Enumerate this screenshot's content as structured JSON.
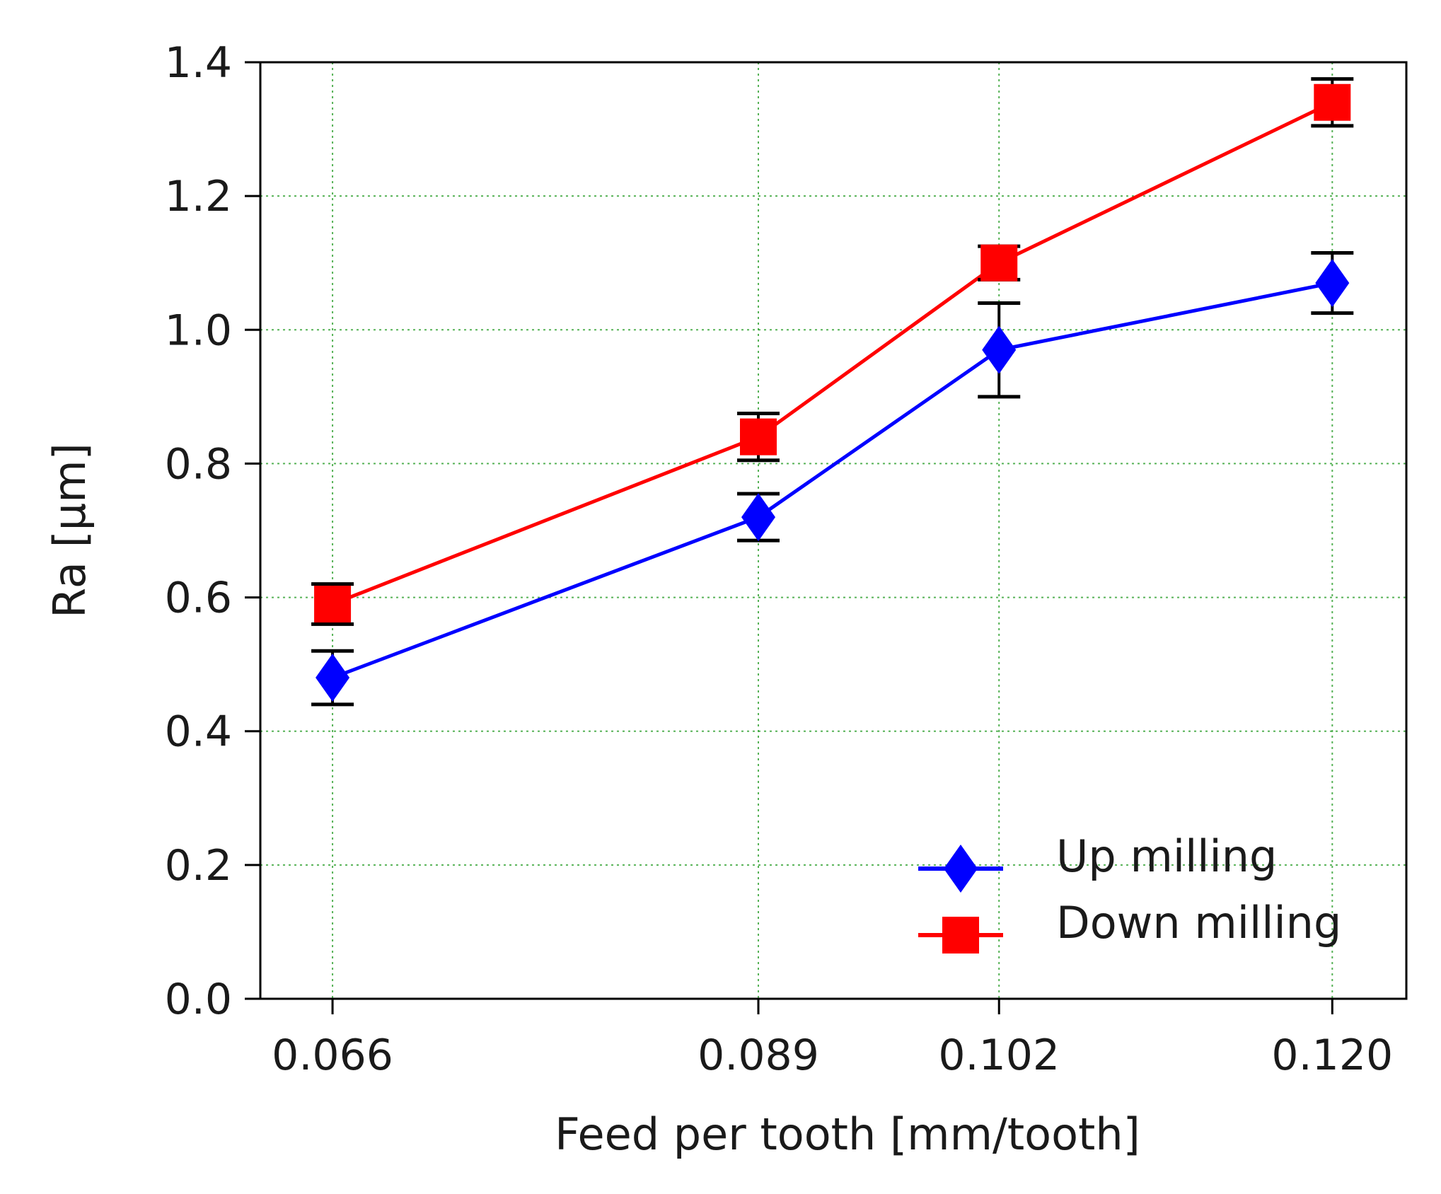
{
  "chart_data": {
    "type": "line",
    "title": "",
    "xlabel": "Feed per tooth [mm/tooth]",
    "ylabel": "Ra [µm]",
    "x": [
      0.066,
      0.089,
      0.102,
      0.12
    ],
    "x_tick_labels": [
      "0.066",
      "0.089",
      "0.102",
      "0.120"
    ],
    "xlim": [
      0.0621,
      0.124
    ],
    "ylim": [
      0.0,
      1.4
    ],
    "y_ticks": [
      0.0,
      0.2,
      0.4,
      0.6,
      0.8,
      1.0,
      1.2,
      1.4
    ],
    "y_tick_labels": [
      "0.0",
      "0.2",
      "0.4",
      "0.6",
      "0.8",
      "1.0",
      "1.2",
      "1.4"
    ],
    "grid": true,
    "legend_position": "bottom-right",
    "series": [
      {
        "name": "Up milling",
        "values": [
          0.48,
          0.72,
          0.97,
          1.07
        ],
        "errors": [
          0.04,
          0.035,
          0.07,
          0.045
        ],
        "color": "#0000ff",
        "marker": "diamond"
      },
      {
        "name": "Down milling",
        "values": [
          0.59,
          0.84,
          1.1,
          1.34
        ],
        "errors": [
          0.03,
          0.035,
          0.025,
          0.035
        ],
        "color": "#ff0000",
        "marker": "square"
      }
    ],
    "colors": {
      "grid": "#2ca02c",
      "errorbar": "#000000",
      "axis": "#000000"
    }
  }
}
